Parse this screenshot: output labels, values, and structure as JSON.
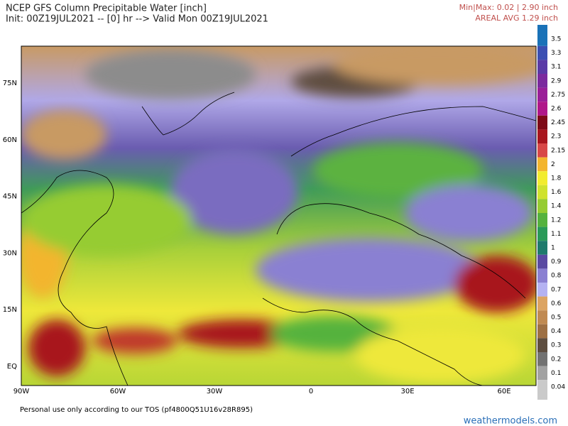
{
  "header": {
    "title": "NCEP GFS Column Precipitable Water [inch]",
    "init": "Init: 00Z19JUL2021 -- [0] hr --> Valid Mon 00Z19JUL2021"
  },
  "stats": {
    "minmax": "Min|Max: 0.02 | 2.90 inch",
    "areal_avg": "AREAL AVG 1.29 inch"
  },
  "axes": {
    "lat_labels": [
      "75N",
      "60N",
      "45N",
      "30N",
      "15N",
      "EQ"
    ],
    "lon_labels": [
      "90W",
      "60W",
      "30W",
      "0",
      "30E",
      "60E"
    ]
  },
  "colorbar": {
    "levels": [
      {
        "label": "3.5",
        "color": "#1a72b8"
      },
      {
        "label": "3.3",
        "color": "#3b4fb2"
      },
      {
        "label": "3.1",
        "color": "#5a3aa6"
      },
      {
        "label": "2.9",
        "color": "#7b2a9e"
      },
      {
        "label": "2.75",
        "color": "#9a1f98"
      },
      {
        "label": "2.6",
        "color": "#b0178a"
      },
      {
        "label": "2.45",
        "color": "#7e0a18"
      },
      {
        "label": "2.3",
        "color": "#a8161e"
      },
      {
        "label": "2.15",
        "color": "#d84848"
      },
      {
        "label": "2",
        "color": "#f3b52e"
      },
      {
        "label": "1.8",
        "color": "#f2ec2e"
      },
      {
        "label": "1.6",
        "color": "#cfe22e"
      },
      {
        "label": "1.4",
        "color": "#96cc32"
      },
      {
        "label": "1.2",
        "color": "#55b23e"
      },
      {
        "label": "1.1",
        "color": "#2a9a58"
      },
      {
        "label": "1",
        "color": "#1f7a6c"
      },
      {
        "label": "0.9",
        "color": "#5a4aa2"
      },
      {
        "label": "0.8",
        "color": "#8a80d2"
      },
      {
        "label": "0.7",
        "color": "#b4b2f2"
      },
      {
        "label": "0.6",
        "color": "#dca462"
      },
      {
        "label": "0.5",
        "color": "#c08a52"
      },
      {
        "label": "0.4",
        "color": "#9e7044"
      },
      {
        "label": "0.3",
        "color": "#5e4e40"
      },
      {
        "label": "0.2",
        "color": "#727272"
      },
      {
        "label": "0.1",
        "color": "#a2a2a2"
      },
      {
        "label": "0.04",
        "color": "#cacaca"
      }
    ]
  },
  "footer": {
    "tos": "Personal use only according to our TOS (pf4800Q51U16v28R895)",
    "site": "weathermodels.com"
  }
}
